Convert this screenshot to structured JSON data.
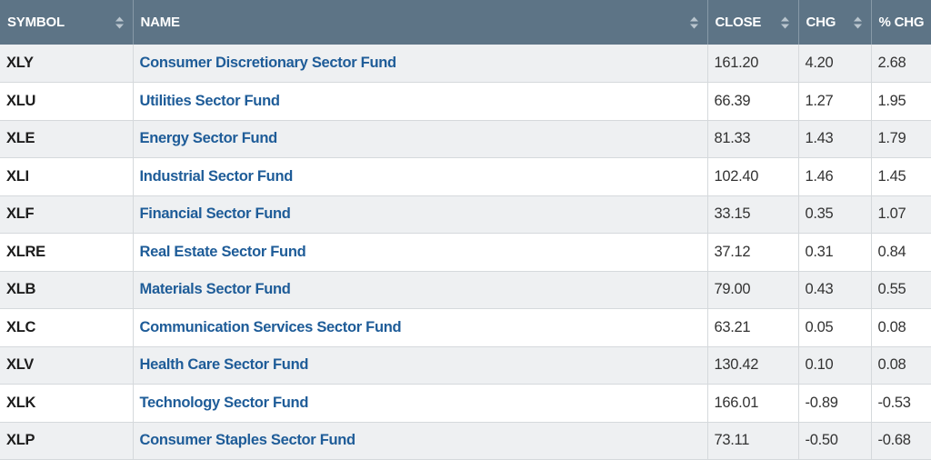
{
  "headers": {
    "symbol": "SYMBOL",
    "name": "NAME",
    "close": "CLOSE",
    "chg": "CHG",
    "pct_chg": "% CHG"
  },
  "rows": [
    {
      "symbol": "XLY",
      "name": "Consumer Discretionary Sector Fund",
      "close": "161.20",
      "chg": "4.20",
      "pct_chg": "2.68"
    },
    {
      "symbol": "XLU",
      "name": "Utilities Sector Fund",
      "close": "66.39",
      "chg": "1.27",
      "pct_chg": "1.95"
    },
    {
      "symbol": "XLE",
      "name": "Energy Sector Fund",
      "close": "81.33",
      "chg": "1.43",
      "pct_chg": "1.79"
    },
    {
      "symbol": "XLI",
      "name": "Industrial Sector Fund",
      "close": "102.40",
      "chg": "1.46",
      "pct_chg": "1.45"
    },
    {
      "symbol": "XLF",
      "name": "Financial Sector Fund",
      "close": "33.15",
      "chg": "0.35",
      "pct_chg": "1.07"
    },
    {
      "symbol": "XLRE",
      "name": "Real Estate Sector Fund",
      "close": "37.12",
      "chg": "0.31",
      "pct_chg": "0.84"
    },
    {
      "symbol": "XLB",
      "name": "Materials Sector Fund",
      "close": "79.00",
      "chg": "0.43",
      "pct_chg": "0.55"
    },
    {
      "symbol": "XLC",
      "name": "Communication Services Sector Fund",
      "close": "63.21",
      "chg": "0.05",
      "pct_chg": "0.08"
    },
    {
      "symbol": "XLV",
      "name": "Health Care Sector Fund",
      "close": "130.42",
      "chg": "0.10",
      "pct_chg": "0.08"
    },
    {
      "symbol": "XLK",
      "name": "Technology Sector Fund",
      "close": "166.01",
      "chg": "-0.89",
      "pct_chg": "-0.53"
    },
    {
      "symbol": "XLP",
      "name": "Consumer Staples Sector Fund",
      "close": "73.11",
      "chg": "-0.50",
      "pct_chg": "-0.68"
    }
  ],
  "colors": {
    "header_bg": "#5d7486",
    "link": "#1e5c98",
    "row_alt": "#eef0f2"
  },
  "icons": {
    "sort": "sort-arrows-icon"
  }
}
